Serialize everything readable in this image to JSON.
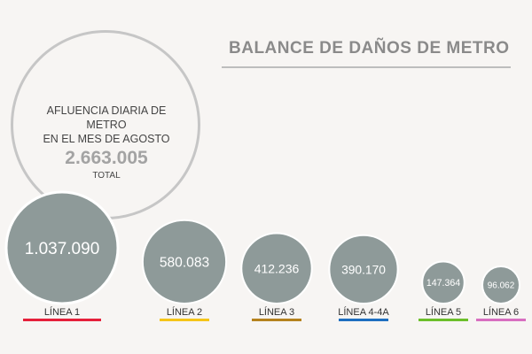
{
  "title": "BALANCE DE DAÑOS DE METRO",
  "total": {
    "caption_line1": "AFLUENCIA DIARIA DE METRO",
    "caption_line2": "EN EL MES DE AGOSTO",
    "value": "2.663.005",
    "label": "TOTAL"
  },
  "colors": {
    "bubble_fill": "#8e9a99",
    "bubble_stroke": "#ffffff",
    "value_text": "#ffffff",
    "line_label_text": "#333333"
  },
  "chart_data": {
    "type": "bubble",
    "title": "BALANCE DE DAÑOS DE METRO",
    "categories": [
      "LÍNEA 1",
      "LÍNEA 2",
      "LÍNEA 3",
      "LÍNEA 4-4A",
      "LÍNEA 5",
      "LÍNEA 6"
    ],
    "values": [
      1037090,
      580083,
      412236,
      390170,
      147364,
      96062
    ],
    "value_labels": [
      "1.037.090",
      "580.083",
      "412.236",
      "390.170",
      "147.364",
      "96.062"
    ],
    "line_colors": [
      "#e5203a",
      "#f5c518",
      "#b5821e",
      "#1e6fc0",
      "#6cbf2a",
      "#d86fc0"
    ],
    "total": 2663005
  }
}
